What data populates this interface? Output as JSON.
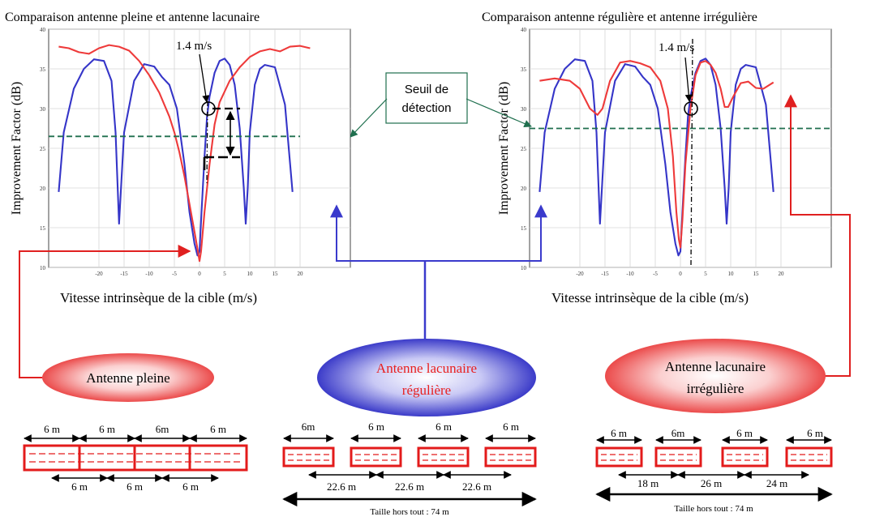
{
  "colors": {
    "blue": "#3535c8",
    "red": "#ee3a3a",
    "green_threshold": "#1f6f4e",
    "annotation_line_red": "#e02020",
    "annotation_line_blue": "#3a3acc",
    "antenna_red": "#e31b1b"
  },
  "left_plot": {
    "title": "Comparaison antenne pleine et antenne lacunaire",
    "ylabel": "Improvement Factor (dB)",
    "xlabel": "Vitesse intrinsèque de la cible (m/s)",
    "x_ticks": [
      "-20",
      "-15",
      "-10",
      "-5",
      "0",
      "5",
      "10",
      "15",
      "20"
    ],
    "y_ticks": [
      "10",
      "15",
      "20",
      "25",
      "30",
      "35",
      "40"
    ],
    "speed_annotation": "1.4 m/s"
  },
  "right_plot": {
    "title": "Comparaison antenne régulière et antenne irrégulière",
    "ylabel": "Improvement Factor (dB)",
    "xlabel": "Vitesse intrinsèque de la cible (m/s)",
    "x_ticks": [
      "-20",
      "-15",
      "-10",
      "-5",
      "0",
      "5",
      "10",
      "15",
      "20"
    ],
    "y_ticks": [
      "10",
      "15",
      "20",
      "25",
      "30",
      "35",
      "40"
    ],
    "speed_annotation": "1.4 m/s"
  },
  "threshold_callout": {
    "line1": "Seuil de",
    "line2": "détection"
  },
  "ellipses": {
    "pleine": {
      "label": "Antenne pleine"
    },
    "reguliere": {
      "line1": "Antenne lacunaire",
      "line2": "régulière"
    },
    "irreguliere": {
      "line1": "Antenne lacunaire",
      "line2": "irrégulière"
    }
  },
  "antenna_pleine": {
    "top_labels": [
      "6 m",
      "6 m",
      "6m",
      "6 m"
    ],
    "bottom_labels": [
      "6 m",
      "6 m",
      "6 m"
    ]
  },
  "antenna_reguliere": {
    "top_labels": [
      "6m",
      "6 m",
      "6 m",
      "6 m"
    ],
    "spacing_labels": [
      "22.6 m",
      "22.6 m",
      "22.6 m"
    ],
    "total_label": "Taille hors tout : 74 m"
  },
  "antenna_irreguliere": {
    "top_labels": [
      "6 m",
      "6m",
      "6 m",
      "6 m"
    ],
    "spacing_labels": [
      "18 m",
      "26 m",
      "24 m"
    ],
    "total_label": "Taille hors tout : 74 m"
  },
  "chart_data": [
    {
      "type": "line",
      "title": "Comparaison antenne pleine et antenne lacunaire",
      "xlabel": "Vitesse intrinsèque de la cible (m/s)",
      "ylabel": "Improvement Factor (dB)",
      "xlim": [
        -30,
        30
      ],
      "ylim": [
        10,
        40
      ],
      "grid": true,
      "series": [
        {
          "color": "#3535c8",
          "x": [
            -28,
            -27,
            -25,
            -23,
            -21,
            -19,
            -17.5,
            -16.7,
            -16,
            -15,
            -13,
            -11,
            -9,
            -7.5,
            -6,
            -4.5,
            -3,
            -2,
            -1,
            -0.4,
            0,
            0.4,
            1,
            1.5,
            2,
            3,
            4,
            5,
            6,
            7,
            8,
            8.8,
            9.2,
            9.6,
            10,
            11,
            12,
            13,
            15,
            17,
            18.5
          ],
          "y": [
            19.5,
            27,
            32.5,
            35,
            36.2,
            36,
            33.5,
            27,
            15.5,
            27,
            33.5,
            35.6,
            35.3,
            34,
            33,
            30,
            23,
            17,
            13,
            11.5,
            12,
            17,
            24,
            29,
            31.5,
            34.5,
            36,
            36.3,
            35.5,
            33,
            27.5,
            20,
            15.5,
            20,
            27,
            33,
            35,
            35.5,
            35.2,
            30.5,
            19.5
          ]
        },
        {
          "color": "#ee3a3a",
          "x": [
            -28,
            -26,
            -24,
            -22,
            -20,
            -18,
            -16,
            -14,
            -12,
            -10,
            -8,
            -6,
            -5,
            -4,
            -3,
            -2,
            -1,
            -0.3,
            0,
            0.3,
            1,
            2,
            3,
            4,
            6,
            8,
            10,
            12,
            14,
            16,
            18,
            20,
            22
          ],
          "y": [
            37.8,
            37.6,
            37.1,
            36.9,
            37.6,
            38,
            37.8,
            37.3,
            36,
            34.2,
            32,
            29,
            27,
            24.5,
            21.5,
            18,
            14.5,
            12,
            10.8,
            12,
            17,
            23,
            28,
            30.8,
            33.5,
            35.2,
            36.5,
            37.2,
            37.5,
            37.2,
            37.8,
            37.9,
            37.6
          ]
        },
        {
          "color": "#1f6f4e",
          "dashed": true,
          "x": [
            -30,
            20
          ],
          "y": [
            26.5,
            26.5
          ]
        }
      ]
    },
    {
      "type": "line",
      "title": "Comparaison antenne régulière et antenne irrégulière",
      "xlabel": "Vitesse intrinsèque de la cible (m/s)",
      "ylabel": "Improvement Factor (dB)",
      "xlim": [
        -30,
        30
      ],
      "ylim": [
        10,
        40
      ],
      "grid": true,
      "series": [
        {
          "color": "#3535c8",
          "x": [
            -28,
            -27,
            -25,
            -23,
            -21,
            -19,
            -17.5,
            -16.7,
            -16,
            -15,
            -13,
            -11,
            -9,
            -7.5,
            -6,
            -4.5,
            -3,
            -2,
            -1,
            -0.4,
            0,
            0.4,
            1,
            1.5,
            2,
            3,
            4,
            5,
            6,
            7,
            8,
            8.8,
            9.2,
            9.6,
            10,
            11,
            12,
            13,
            15,
            17,
            18.5
          ],
          "y": [
            19.5,
            27,
            32.5,
            35,
            36.2,
            36,
            33.5,
            27,
            15.5,
            27,
            33.5,
            35.6,
            35.3,
            34,
            33,
            30,
            23,
            17,
            13,
            11.5,
            12,
            17,
            24,
            29,
            31.5,
            34.5,
            36,
            36.3,
            35.5,
            33,
            27.5,
            20,
            15.5,
            20,
            27,
            33,
            35,
            35.5,
            35.2,
            30.5,
            19.5
          ]
        },
        {
          "color": "#ee3a3a",
          "x": [
            -28,
            -25,
            -22,
            -20,
            -18,
            -16.5,
            -15.5,
            -14,
            -12,
            -10,
            -8,
            -6,
            -4,
            -2.5,
            -1.5,
            -0.8,
            -0.3,
            0,
            0.4,
            1,
            2,
            3,
            4,
            5,
            6,
            7,
            8,
            8.8,
            9.5,
            10.5,
            12,
            13.5,
            15,
            16.5,
            18.5
          ],
          "y": [
            33.5,
            33.8,
            33.5,
            32.5,
            30,
            29.2,
            30,
            33.5,
            35.8,
            36,
            35.7,
            35.2,
            33.5,
            30,
            24,
            17,
            13.5,
            12.5,
            16,
            23,
            30,
            34.2,
            35.8,
            36,
            35.5,
            34.5,
            32.5,
            30.2,
            30.2,
            31.5,
            33.2,
            33.4,
            32.6,
            32.5,
            33.3
          ]
        },
        {
          "color": "#1f6f4e",
          "dashed": true,
          "x": [
            -30,
            30
          ],
          "y": [
            27.5,
            27.5
          ]
        }
      ]
    }
  ]
}
